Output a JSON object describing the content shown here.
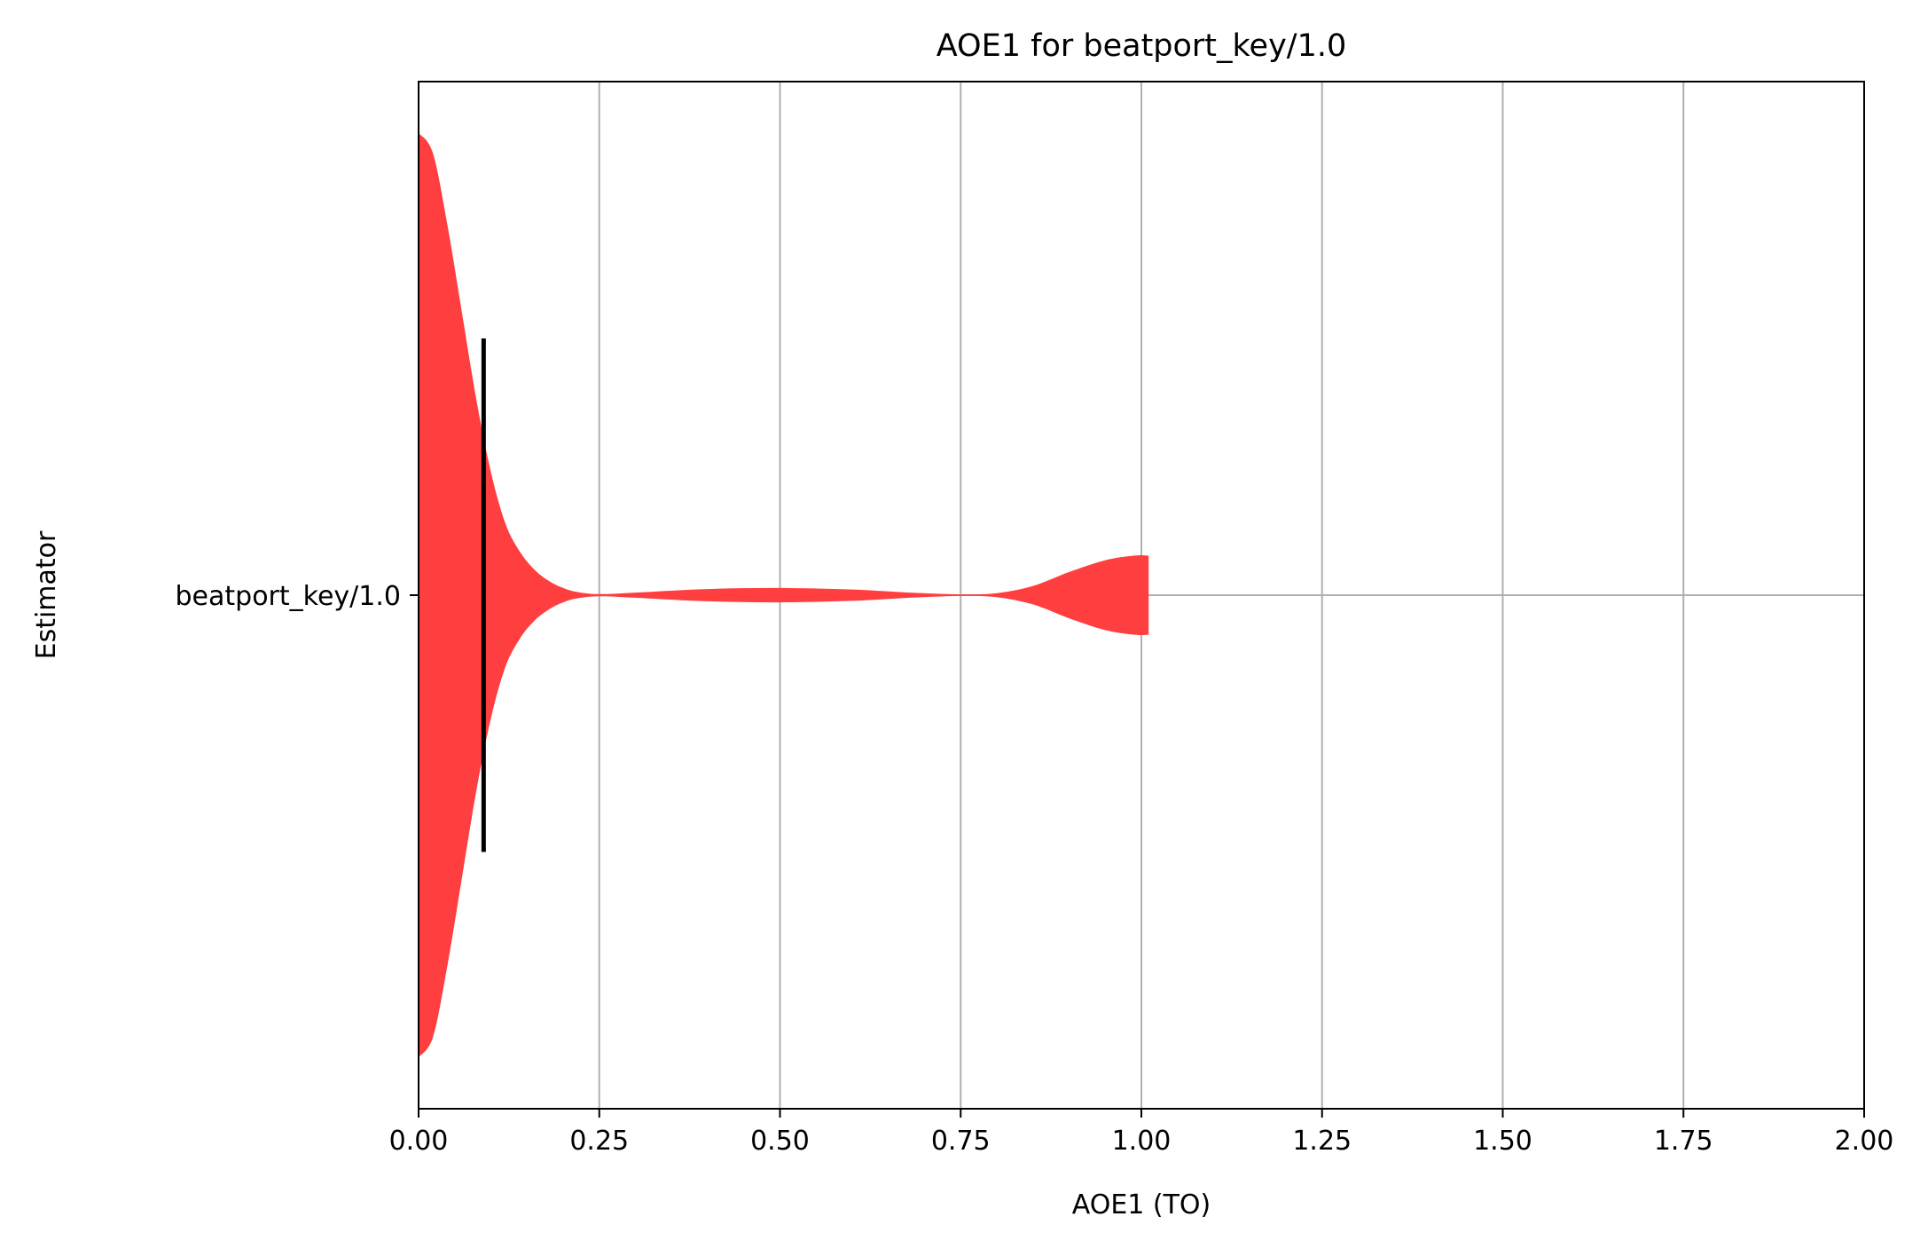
{
  "chart_data": {
    "type": "violin",
    "orientation": "horizontal",
    "title": "AOE1 for beatport_key/1.0",
    "xlabel": "AOE1 (TO)",
    "ylabel": "Estimator",
    "xlim": [
      0,
      2.0
    ],
    "xticks": [
      "0.00",
      "0.25",
      "0.50",
      "0.75",
      "1.00",
      "1.25",
      "1.50",
      "1.75",
      "2.00"
    ],
    "grid": true,
    "categories": [
      "beatport_key/1.0"
    ],
    "series": [
      {
        "category": "beatport_key/1.0",
        "color": "#ff3b3b",
        "median": 0.09,
        "range": [
          0.0,
          1.01
        ],
        "density": [
          {
            "x": 0.0,
            "w": 0.9
          },
          {
            "x": 0.02,
            "w": 0.86
          },
          {
            "x": 0.04,
            "w": 0.72
          },
          {
            "x": 0.06,
            "w": 0.55
          },
          {
            "x": 0.08,
            "w": 0.38
          },
          {
            "x": 0.1,
            "w": 0.24
          },
          {
            "x": 0.12,
            "w": 0.14
          },
          {
            "x": 0.14,
            "w": 0.085
          },
          {
            "x": 0.16,
            "w": 0.05
          },
          {
            "x": 0.18,
            "w": 0.028
          },
          {
            "x": 0.2,
            "w": 0.014
          },
          {
            "x": 0.22,
            "w": 0.006
          },
          {
            "x": 0.25,
            "w": 0.002
          },
          {
            "x": 0.3,
            "w": 0.005
          },
          {
            "x": 0.4,
            "w": 0.012
          },
          {
            "x": 0.5,
            "w": 0.014
          },
          {
            "x": 0.6,
            "w": 0.011
          },
          {
            "x": 0.68,
            "w": 0.005
          },
          {
            "x": 0.75,
            "w": 0.0015
          },
          {
            "x": 0.8,
            "w": 0.004
          },
          {
            "x": 0.85,
            "w": 0.018
          },
          {
            "x": 0.9,
            "w": 0.045
          },
          {
            "x": 0.95,
            "w": 0.068
          },
          {
            "x": 0.99,
            "w": 0.077
          },
          {
            "x": 1.01,
            "w": 0.077
          }
        ]
      }
    ]
  }
}
